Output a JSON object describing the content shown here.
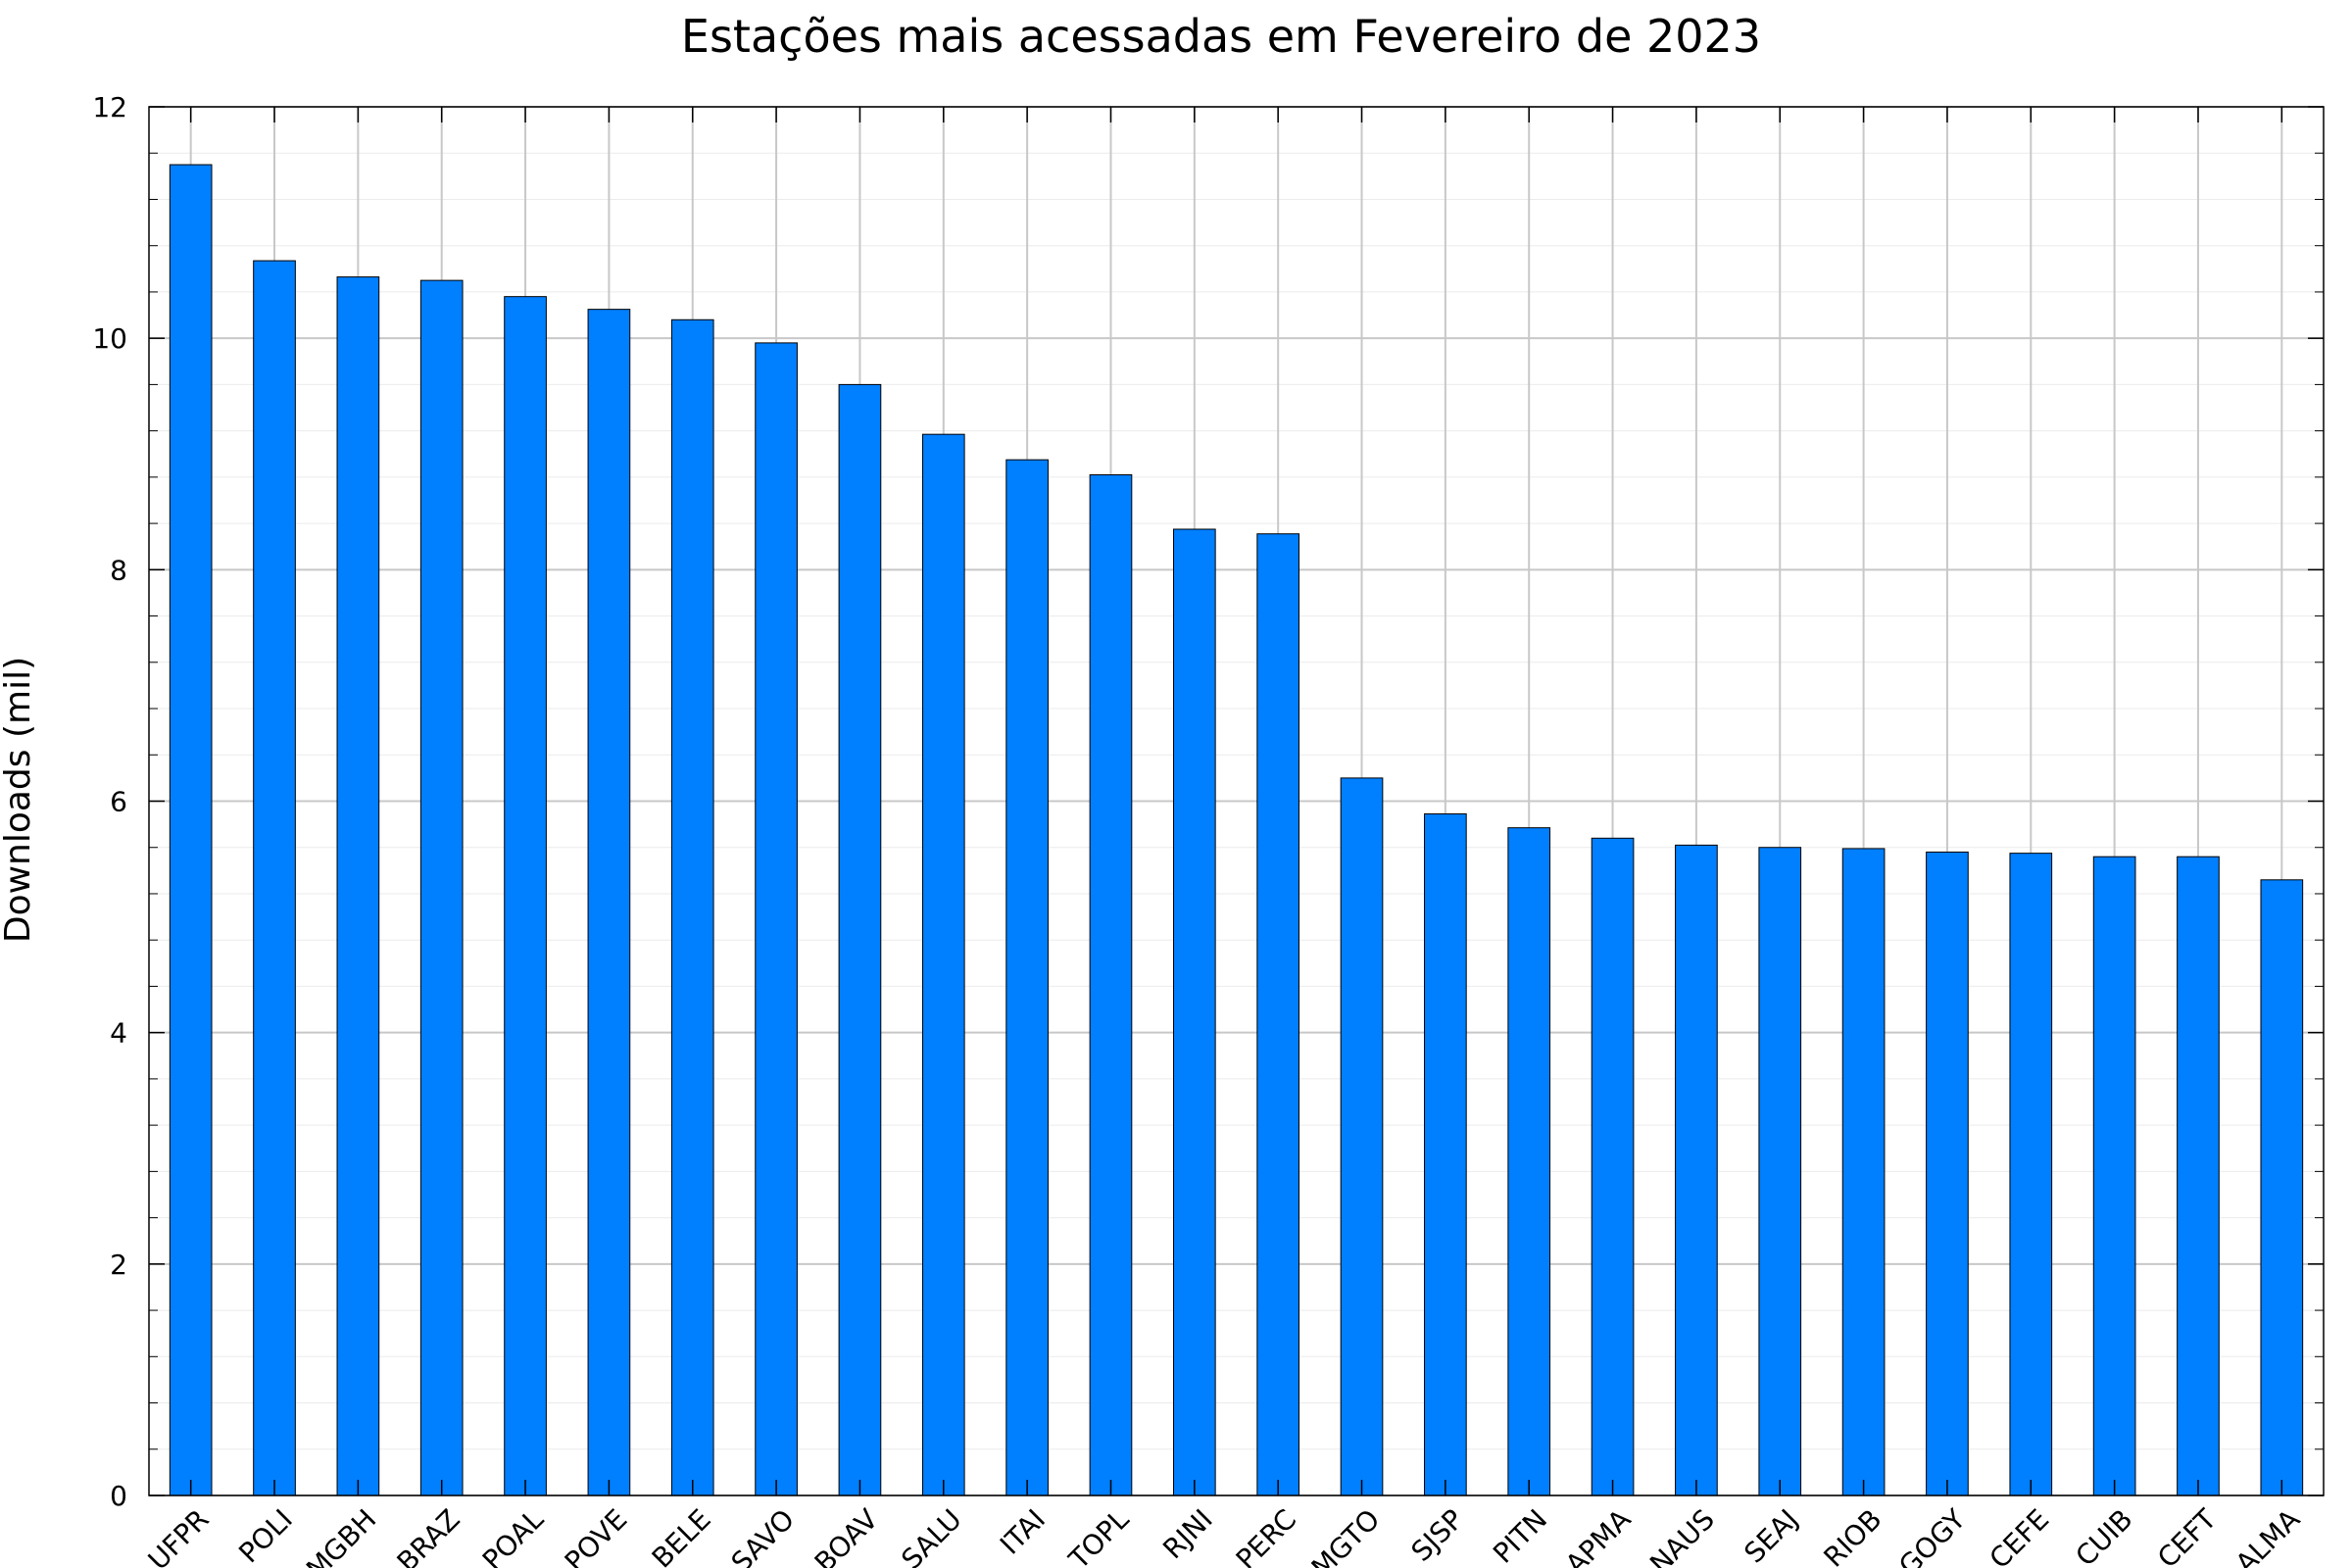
{
  "chart_data": {
    "type": "bar",
    "title": "Estações mais acessadas em Fevereiro de 2023",
    "xlabel": "",
    "ylabel": "Downloads (mil)",
    "ylim": [
      0,
      12
    ],
    "yticks": [
      "0",
      "2",
      "4",
      "6",
      "8",
      "10",
      "12"
    ],
    "grid": true,
    "bar_color": "#007FFF",
    "categories": [
      "UFPR",
      "POLI",
      "MGBH",
      "BRAZ",
      "POAL",
      "POVE",
      "BELE",
      "SAVO",
      "BOAV",
      "SALU",
      "ITAI",
      "TOPL",
      "RJNI",
      "PERC",
      "MGTO",
      "SJSP",
      "PITN",
      "APMA",
      "NAUS",
      "SEAJ",
      "RIOB",
      "GOGY",
      "CEFE",
      "CUIB",
      "CEFT",
      "ALMA"
    ],
    "values": [
      11.5,
      10.67,
      10.53,
      10.5,
      10.36,
      10.25,
      10.16,
      9.96,
      9.6,
      9.17,
      8.95,
      8.82,
      8.35,
      8.31,
      6.2,
      5.89,
      5.77,
      5.68,
      5.62,
      5.6,
      5.59,
      5.56,
      5.55,
      5.52,
      5.52,
      5.32
    ]
  }
}
